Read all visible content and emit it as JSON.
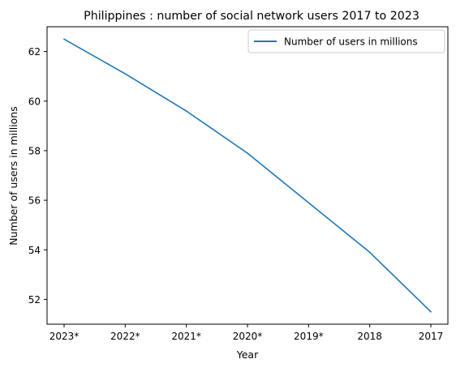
{
  "chart_data": {
    "type": "line",
    "title": "Philippines : number of social network users 2017 to 2023",
    "xlabel": "Year",
    "ylabel": "Number of users in millions",
    "categories": [
      "2023*",
      "2022*",
      "2021*",
      "2020*",
      "2019*",
      "2018",
      "2017"
    ],
    "series": [
      {
        "name": "Number of users in millions",
        "values": [
          62.5,
          61.1,
          59.6,
          57.9,
          55.9,
          53.9,
          51.5
        ],
        "color": "#1f77b4"
      }
    ],
    "ylim": [
      51.0,
      63.0
    ],
    "yticks": [
      52,
      54,
      56,
      58,
      60,
      62
    ],
    "grid": false,
    "legend_position": "top-right"
  }
}
